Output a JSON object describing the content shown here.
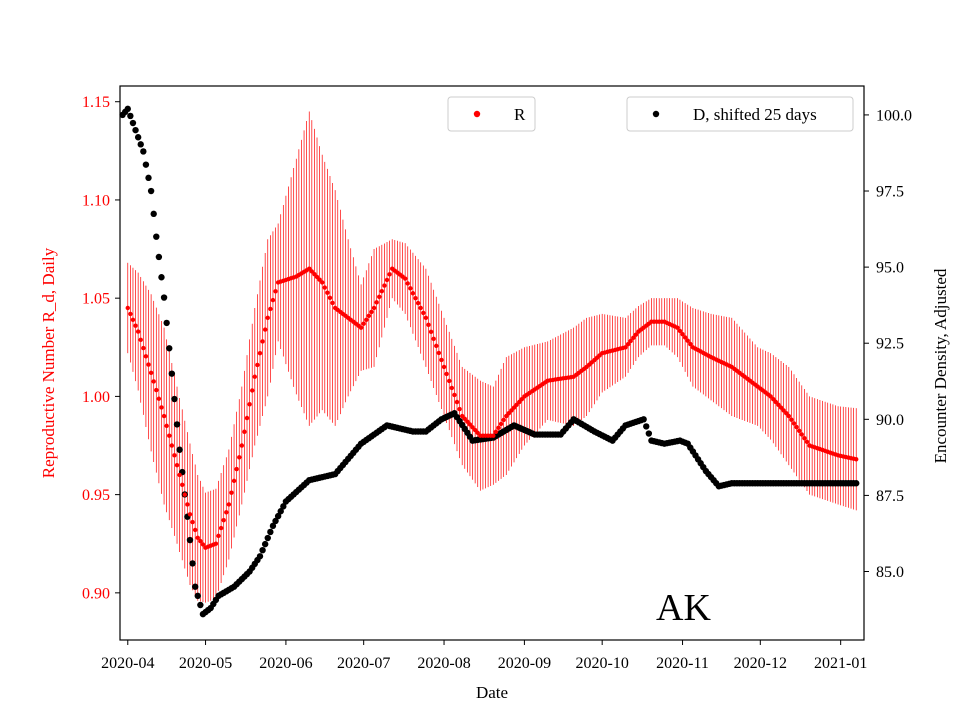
{
  "chart_data": {
    "type": "scatter",
    "xlabel": "Date",
    "ylabel_left": "Reproductive Number R_d, Daily",
    "ylabel_right": "Encounter Density, Adjusted",
    "annotation": "AK",
    "x_ticks": [
      "2020-04",
      "2020-05",
      "2020-06",
      "2020-07",
      "2020-08",
      "2020-09",
      "2020-10",
      "2020-11",
      "2020-12",
      "2021-01"
    ],
    "x_range": [
      "2020-03-29",
      "2021-01-10"
    ],
    "ylim_left": [
      0.876,
      1.158
    ],
    "yticks_left": [
      "0.90",
      "0.95",
      "1.00",
      "1.05",
      "1.10",
      "1.15"
    ],
    "ylim_right": [
      82.75,
      100.95
    ],
    "yticks_right": [
      "85.0",
      "87.5",
      "90.0",
      "92.5",
      "95.0",
      "97.5",
      "100.0"
    ],
    "grid": false,
    "colors": {
      "left_axis": "#ff0000",
      "r_series": "#ff0000",
      "d_series": "#000000"
    },
    "legends": [
      {
        "label": "R",
        "color": "#ff0000",
        "placement": "top-center"
      },
      {
        "label": "D, shifted 25 days",
        "color": "#000000",
        "placement": "top-right"
      }
    ],
    "series": [
      {
        "name": "R",
        "axis": "left",
        "color": "#ff0000",
        "points": [
          [
            "2020-04-01",
            1.045,
            0.023
          ],
          [
            "2020-04-05",
            1.033,
            0.03
          ],
          [
            "2020-04-10",
            1.012,
            0.04
          ],
          [
            "2020-04-15",
            0.99,
            0.045
          ],
          [
            "2020-04-20",
            0.965,
            0.04
          ],
          [
            "2020-04-25",
            0.94,
            0.036
          ],
          [
            "2020-04-28",
            0.928,
            0.032
          ],
          [
            "2020-05-01",
            0.923,
            0.028
          ],
          [
            "2020-05-05",
            0.925,
            0.028
          ],
          [
            "2020-05-10",
            0.945,
            0.028
          ],
          [
            "2020-05-15",
            0.975,
            0.03
          ],
          [
            "2020-05-20",
            1.01,
            0.035
          ],
          [
            "2020-05-25",
            1.04,
            0.04
          ],
          [
            "2020-05-29",
            1.058,
            0.03
          ],
          [
            "2020-06-05",
            1.061,
            0.06
          ],
          [
            "2020-06-10",
            1.065,
            0.08
          ],
          [
            "2020-06-15",
            1.058,
            0.065
          ],
          [
            "2020-06-20",
            1.045,
            0.06
          ],
          [
            "2020-06-25",
            1.04,
            0.04
          ],
          [
            "2020-06-30",
            1.035,
            0.022
          ],
          [
            "2020-07-05",
            1.045,
            0.03
          ],
          [
            "2020-07-12",
            1.065,
            0.015
          ],
          [
            "2020-07-17",
            1.06,
            0.018
          ],
          [
            "2020-07-25",
            1.04,
            0.025
          ],
          [
            "2020-08-01",
            1.015,
            0.025
          ],
          [
            "2020-08-08",
            0.99,
            0.025
          ],
          [
            "2020-08-15",
            0.98,
            0.028
          ],
          [
            "2020-08-20",
            0.98,
            0.025
          ],
          [
            "2020-08-25",
            0.99,
            0.03
          ],
          [
            "2020-09-01",
            1.0,
            0.025
          ],
          [
            "2020-09-10",
            1.008,
            0.02
          ],
          [
            "2020-09-20",
            1.01,
            0.025
          ],
          [
            "2020-09-25",
            1.015,
            0.025
          ],
          [
            "2020-10-01",
            1.022,
            0.02
          ],
          [
            "2020-10-10",
            1.025,
            0.015
          ],
          [
            "2020-10-15",
            1.033,
            0.013
          ],
          [
            "2020-10-20",
            1.038,
            0.012
          ],
          [
            "2020-10-25",
            1.038,
            0.012
          ],
          [
            "2020-10-30",
            1.035,
            0.015
          ],
          [
            "2020-11-05",
            1.025,
            0.02
          ],
          [
            "2020-11-12",
            1.02,
            0.022
          ],
          [
            "2020-11-20",
            1.015,
            0.025
          ],
          [
            "2020-11-30",
            1.005,
            0.02
          ],
          [
            "2020-12-05",
            1.0,
            0.022
          ],
          [
            "2020-12-12",
            0.99,
            0.025
          ],
          [
            "2020-12-20",
            0.975,
            0.025
          ],
          [
            "2020-12-31",
            0.97,
            0.025
          ],
          [
            "2021-01-07",
            0.968,
            0.026
          ]
        ]
      },
      {
        "name": "D, shifted 25 days",
        "axis": "right",
        "color": "#000000",
        "points": [
          [
            "2020-03-30",
            100.0
          ],
          [
            "2020-04-01",
            100.2
          ],
          [
            "2020-04-04",
            99.5
          ],
          [
            "2020-04-07",
            98.8
          ],
          [
            "2020-04-10",
            97.5
          ],
          [
            "2020-04-12",
            96.0
          ],
          [
            "2020-04-15",
            94.0
          ],
          [
            "2020-04-18",
            91.5
          ],
          [
            "2020-04-21",
            89.0
          ],
          [
            "2020-04-24",
            86.8
          ],
          [
            "2020-04-27",
            84.5
          ],
          [
            "2020-04-30",
            83.6
          ],
          [
            "2020-05-03",
            83.8
          ],
          [
            "2020-05-06",
            84.2
          ],
          [
            "2020-05-12",
            84.5
          ],
          [
            "2020-05-18",
            85.0
          ],
          [
            "2020-05-22",
            85.5
          ],
          [
            "2020-05-27",
            86.5
          ],
          [
            "2020-06-01",
            87.3
          ],
          [
            "2020-06-10",
            88.0
          ],
          [
            "2020-06-20",
            88.2
          ],
          [
            "2020-06-30",
            89.2
          ],
          [
            "2020-07-05",
            89.5
          ],
          [
            "2020-07-10",
            89.8
          ],
          [
            "2020-07-15",
            89.7
          ],
          [
            "2020-07-20",
            89.6
          ],
          [
            "2020-07-25",
            89.6
          ],
          [
            "2020-07-31",
            90.0
          ],
          [
            "2020-08-05",
            90.2
          ],
          [
            "2020-08-12",
            89.3
          ],
          [
            "2020-08-20",
            89.4
          ],
          [
            "2020-08-28",
            89.8
          ],
          [
            "2020-09-05",
            89.5
          ],
          [
            "2020-09-15",
            89.5
          ],
          [
            "2020-09-20",
            90.0
          ],
          [
            "2020-09-28",
            89.6
          ],
          [
            "2020-10-05",
            89.3
          ],
          [
            "2020-10-10",
            89.8
          ],
          [
            "2020-10-17",
            90.0
          ],
          [
            "2020-10-20",
            89.3
          ],
          [
            "2020-10-25",
            89.2
          ],
          [
            "2020-10-31",
            89.3
          ],
          [
            "2020-11-03",
            89.2
          ],
          [
            "2020-11-10",
            88.3
          ],
          [
            "2020-11-15",
            87.8
          ],
          [
            "2020-11-20",
            87.9
          ],
          [
            "2020-12-01",
            87.9
          ],
          [
            "2020-12-15",
            87.9
          ],
          [
            "2021-01-07",
            87.9
          ]
        ]
      }
    ]
  }
}
